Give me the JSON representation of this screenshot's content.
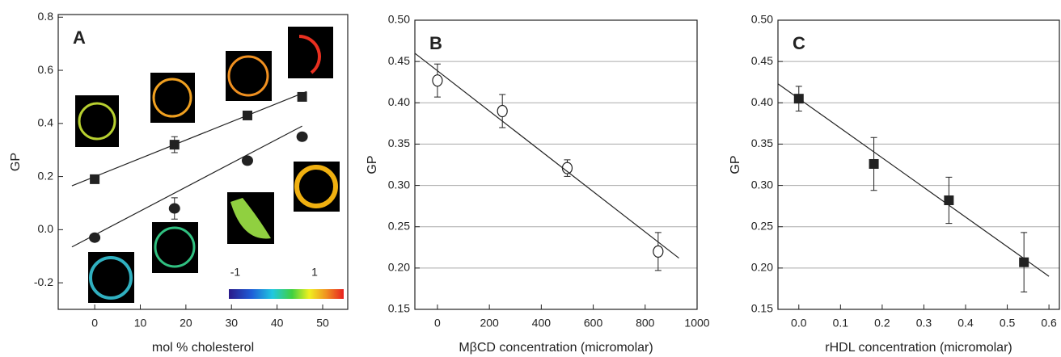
{
  "chart_data": [
    {
      "type": "scatter",
      "panel_label": "A",
      "xlabel": "mol % cholesterol",
      "ylabel": "GP",
      "xlim": [
        -8,
        55.5
      ],
      "ylim": [
        -0.3,
        0.81
      ],
      "grid": false,
      "xticks": [
        0,
        10,
        20,
        30,
        40,
        50
      ],
      "yticks": [
        -0.2,
        {
          "value": 0,
          "label": "0.0"
        },
        0.2,
        0.4,
        0.6,
        0.8
      ],
      "colorbar_labels": [
        "-1",
        "1"
      ],
      "series": [
        {
          "marker": "square",
          "color": "#222",
          "x": [
            0,
            17.5,
            33.5,
            45.5
          ],
          "values": [
            0.19,
            0.32,
            0.43,
            0.5
          ],
          "errors": [
            0.01,
            0.03,
            0.01,
            0.01
          ]
        },
        {
          "marker": "circle",
          "color": "#222",
          "x": [
            0,
            17.5,
            33.5,
            45.5
          ],
          "values": [
            -0.03,
            0.08,
            0.26,
            0.35
          ],
          "errors": [
            0.01,
            0.04,
            0.01,
            0.01
          ]
        },
        {
          "marker": "line",
          "color": "#222",
          "x": [
            -5,
            46.5
          ],
          "values": [
            0.165,
            0.52
          ]
        },
        {
          "marker": "line",
          "color": "#222",
          "x": [
            -5,
            45.5
          ],
          "values": [
            -0.065,
            0.39
          ]
        }
      ]
    },
    {
      "type": "scatter",
      "panel_label": "B",
      "xlabel": "MβCD concentration (micromolar)",
      "ylabel": "GP",
      "xlim": [
        -87,
        1000
      ],
      "ylim": [
        0.15,
        0.5
      ],
      "grid": true,
      "xticks": [
        0,
        200,
        400,
        600,
        800,
        1000
      ],
      "yticks": [
        0.15,
        {
          "value": 0.2,
          "label": "0.20"
        },
        0.25,
        {
          "value": 0.3,
          "label": "0.30"
        },
        0.35,
        {
          "value": 0.4,
          "label": "0.40"
        },
        0.45,
        {
          "value": 0.5,
          "label": "0.50"
        }
      ],
      "series": [
        {
          "marker": "open-circle",
          "color": "#222",
          "x": [
            0,
            250,
            500,
            850
          ],
          "values": [
            0.427,
            0.39,
            0.321,
            0.22
          ],
          "errors": [
            0.02,
            0.02,
            0.01,
            0.023
          ]
        },
        {
          "marker": "line",
          "color": "#222",
          "x": [
            -87,
            930
          ],
          "values": [
            0.46,
            0.212
          ]
        }
      ]
    },
    {
      "type": "scatter",
      "panel_label": "C",
      "xlabel": "rHDL concentration (micromolar)",
      "ylabel": "GP",
      "xlim": [
        -0.05,
        0.625
      ],
      "ylim": [
        0.15,
        0.5
      ],
      "grid": true,
      "xticks": [
        {
          "value": 0,
          "label": "0.0"
        },
        0.1,
        0.2,
        0.3,
        0.4,
        0.5,
        0.6
      ],
      "yticks": [
        0.15,
        {
          "value": 0.2,
          "label": "0.20"
        },
        0.25,
        {
          "value": 0.3,
          "label": "0.30"
        },
        0.35,
        {
          "value": 0.4,
          "label": "0.40"
        },
        0.45,
        {
          "value": 0.5,
          "label": "0.50"
        }
      ],
      "series": [
        {
          "marker": "square",
          "color": "#222",
          "x": [
            0,
            0.18,
            0.36,
            0.54
          ],
          "values": [
            0.405,
            0.326,
            0.282,
            0.207
          ],
          "errors": [
            0.015,
            0.032,
            0.028,
            0.036
          ]
        },
        {
          "marker": "line",
          "color": "#222",
          "x": [
            -0.05,
            0.6
          ],
          "values": [
            0.423,
            0.19
          ]
        }
      ]
    }
  ]
}
